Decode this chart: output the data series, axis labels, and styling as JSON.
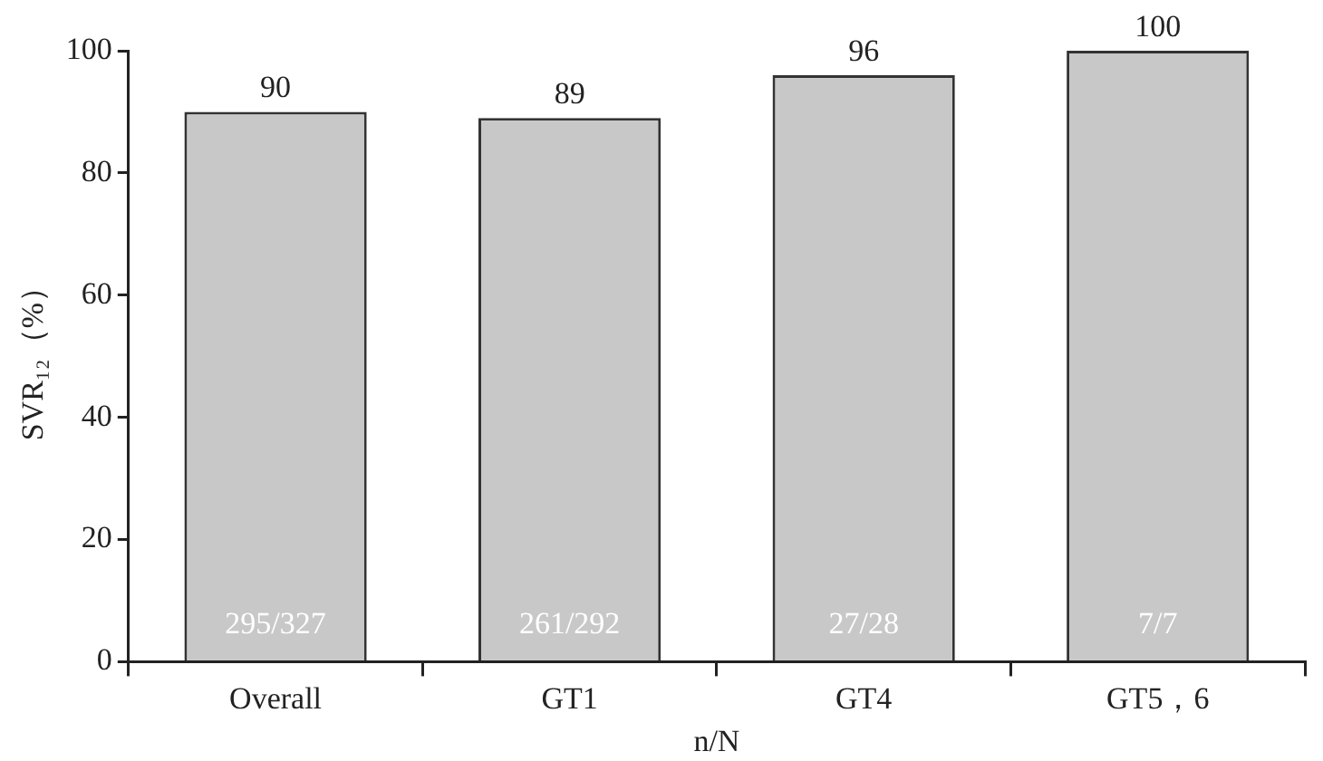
{
  "chart_data": {
    "type": "bar",
    "xlabel": "n/N",
    "ylabel": "SVR₁₂（%）",
    "categories": [
      "Overall",
      "GT1",
      "GT4",
      "GT5，6"
    ],
    "values": [
      90,
      89,
      96,
      100
    ],
    "color": "#c8c8c8",
    "ylim": [
      0,
      100
    ],
    "yticks": [
      0,
      20,
      40,
      60,
      80,
      100
    ],
    "grid": false,
    "legend": false,
    "data_labels": true,
    "annotations": [
      "295/327",
      "261/292",
      "27/28",
      "7/7"
    ]
  }
}
